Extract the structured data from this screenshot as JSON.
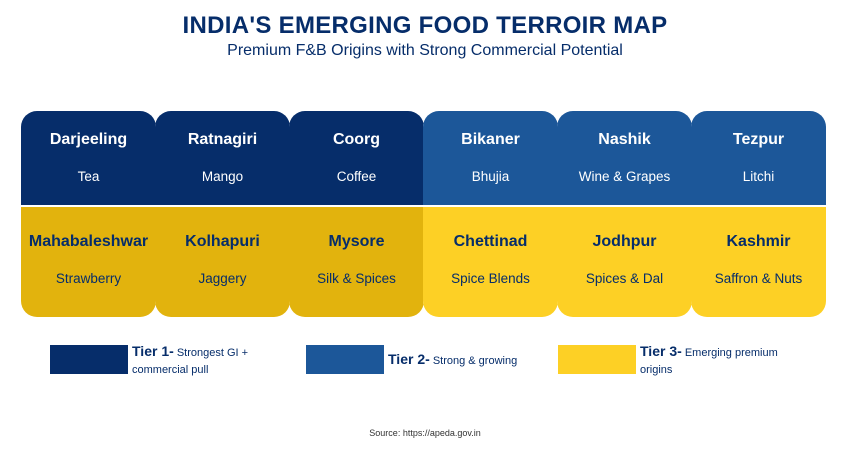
{
  "title": "INDIA'S EMERGING FOOD TERROIR MAP",
  "subtitle": "Premium F&B Origins with Strong Commercial Potential",
  "colors": {
    "tier1_top": "#062d6a",
    "tier1_bottom": "#e2b30d",
    "tier2_top": "#1c5799",
    "tier3_bottom": "#fdd025"
  },
  "columns": [
    {
      "top": {
        "name": "Darjeeling",
        "product": "Tea"
      },
      "bottom": {
        "name": "Mahabaleshwar",
        "product": "Strawberry"
      }
    },
    {
      "top": {
        "name": "Ratnagiri",
        "product": "Mango"
      },
      "bottom": {
        "name": "Kolhapuri",
        "product": "Jaggery"
      }
    },
    {
      "top": {
        "name": "Coorg",
        "product": "Coffee"
      },
      "bottom": {
        "name": "Mysore",
        "product": "Silk & Spices"
      }
    },
    {
      "top": {
        "name": "Bikaner",
        "product": "Bhujia"
      },
      "bottom": {
        "name": "Chettinad",
        "product": "Spice Blends"
      }
    },
    {
      "top": {
        "name": "Nashik",
        "product": "Wine & Grapes"
      },
      "bottom": {
        "name": "Jodhpur",
        "product": "Spices & Dal"
      }
    },
    {
      "top": {
        "name": "Tezpur",
        "product": "Litchi"
      },
      "bottom": {
        "name": "Kashmir",
        "product": "Saffron & Nuts"
      }
    }
  ],
  "legend": [
    {
      "label": "Tier 1-",
      "desc": "Strongest GI + commercial pull"
    },
    {
      "label": "Tier 2-",
      "desc": "Strong & growing"
    },
    {
      "label": "Tier 3-",
      "desc": "Emerging premium origins"
    }
  ],
  "source": "Source: https://apeda.gov.in"
}
